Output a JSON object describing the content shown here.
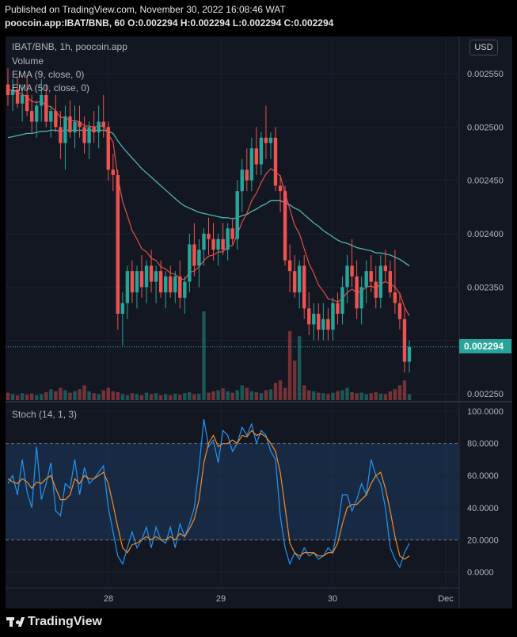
{
  "header": {
    "published": "Published on TradingView.com, November 30, 2022 16:08:46 WAT",
    "symbol_line": "poocoin.app:IBAT/BNB, 60",
    "ohlc": "O:0.002294 H:0.002294 L:0.002294 C:0.002294"
  },
  "legend": {
    "title": "IBAT/BNB, 1h, poocoin.app",
    "volume": "Volume",
    "ema9": "EMA (9, close, 0)",
    "ema50": "EMA (50, close, 0)",
    "stoch": "Stoch (14, 1, 3)"
  },
  "currency_button": "USD",
  "price_tag": "0.002294",
  "footer": {
    "brand": "TradingView"
  },
  "colors": {
    "background": "#131722",
    "up": "#26a69a",
    "down": "#ef5350",
    "ema9": "#f0534c",
    "ema50": "#4db6ac",
    "stoch_k": "#2196f3",
    "stoch_d": "#f28c28",
    "stoch_band": "#1e3a5f"
  },
  "chart_data": [
    {
      "type": "candlestick",
      "title": "IBAT/BNB, 1h, poocoin.app",
      "y_ticks": [
        "0.002550",
        "0.002500",
        "0.002450",
        "0.002400",
        "0.002350",
        "0.002250"
      ],
      "ylim": [
        0.00224,
        0.00257
      ],
      "x_ticks": [
        "28",
        "29",
        "30",
        "Dec"
      ],
      "last_price": 0.002294,
      "candles": [
        [
          0.00254,
          0.002555,
          0.00252,
          0.00253
        ],
        [
          0.00253,
          0.002545,
          0.002515,
          0.002535
        ],
        [
          0.002535,
          0.002548,
          0.002518,
          0.002522
        ],
        [
          0.002522,
          0.00254,
          0.002505,
          0.00253
        ],
        [
          0.00253,
          0.002548,
          0.00251,
          0.002515
        ],
        [
          0.002515,
          0.00253,
          0.002495,
          0.002505
        ],
        [
          0.002505,
          0.002525,
          0.00249,
          0.00252
        ],
        [
          0.00252,
          0.002545,
          0.002505,
          0.00253
        ],
        [
          0.00253,
          0.00254,
          0.0025,
          0.002505
        ],
        [
          0.002505,
          0.00252,
          0.00249,
          0.002515
        ],
        [
          0.002515,
          0.00253,
          0.002495,
          0.0025
        ],
        [
          0.0025,
          0.002515,
          0.00247,
          0.002485
        ],
        [
          0.002485,
          0.00252,
          0.00246,
          0.00251
        ],
        [
          0.00251,
          0.002525,
          0.00249,
          0.002495
        ],
        [
          0.002495,
          0.00252,
          0.00248,
          0.002505
        ],
        [
          0.002505,
          0.00252,
          0.00249,
          0.0025
        ],
        [
          0.0025,
          0.00251,
          0.002475,
          0.002485
        ],
        [
          0.002485,
          0.002505,
          0.00247,
          0.0025
        ],
        [
          0.0025,
          0.002515,
          0.002485,
          0.002495
        ],
        [
          0.002495,
          0.00252,
          0.00248,
          0.002505
        ],
        [
          0.002505,
          0.00253,
          0.00249,
          0.0025
        ],
        [
          0.0025,
          0.002505,
          0.00245,
          0.00246
        ],
        [
          0.00246,
          0.002475,
          0.00244,
          0.002455
        ],
        [
          0.002455,
          0.00246,
          0.00231,
          0.002325
        ],
        [
          0.002325,
          0.002345,
          0.002295,
          0.002335
        ],
        [
          0.002335,
          0.00237,
          0.00232,
          0.002365
        ],
        [
          0.002365,
          0.002375,
          0.002335,
          0.002345
        ],
        [
          0.002345,
          0.00237,
          0.00233,
          0.002365
        ],
        [
          0.002365,
          0.00238,
          0.00234,
          0.00235
        ],
        [
          0.00235,
          0.002375,
          0.002335,
          0.00237
        ],
        [
          0.00237,
          0.002385,
          0.002345,
          0.002355
        ],
        [
          0.002355,
          0.00237,
          0.002335,
          0.002365
        ],
        [
          0.002365,
          0.002375,
          0.00234,
          0.002345
        ],
        [
          0.002345,
          0.002365,
          0.00233,
          0.00236
        ],
        [
          0.00236,
          0.00237,
          0.00234,
          0.002345
        ],
        [
          0.002345,
          0.002365,
          0.002335,
          0.00236
        ],
        [
          0.00236,
          0.002375,
          0.00233,
          0.00234
        ],
        [
          0.00234,
          0.00236,
          0.002325,
          0.002355
        ],
        [
          0.002355,
          0.0024,
          0.002345,
          0.00239
        ],
        [
          0.00239,
          0.00241,
          0.00236,
          0.00237
        ],
        [
          0.00237,
          0.002395,
          0.00235,
          0.002385
        ],
        [
          0.002385,
          0.002405,
          0.00237,
          0.0024
        ],
        [
          0.0024,
          0.002415,
          0.00238,
          0.002395
        ],
        [
          0.002395,
          0.00241,
          0.002375,
          0.002385
        ],
        [
          0.002385,
          0.0024,
          0.00237,
          0.002395
        ],
        [
          0.002395,
          0.00241,
          0.00238,
          0.002385
        ],
        [
          0.002385,
          0.00241,
          0.002375,
          0.002405
        ],
        [
          0.002405,
          0.002415,
          0.00239,
          0.002395
        ],
        [
          0.002395,
          0.00245,
          0.002385,
          0.00244
        ],
        [
          0.00244,
          0.00247,
          0.00242,
          0.00246
        ],
        [
          0.00246,
          0.00248,
          0.00244,
          0.00245
        ],
        [
          0.00245,
          0.00249,
          0.00244,
          0.00248
        ],
        [
          0.00248,
          0.0025,
          0.002455,
          0.002465
        ],
        [
          0.002465,
          0.002495,
          0.002455,
          0.00249
        ],
        [
          0.00249,
          0.00252,
          0.00247,
          0.002485
        ],
        [
          0.002485,
          0.002495,
          0.00247,
          0.00249
        ],
        [
          0.00249,
          0.0025,
          0.00244,
          0.002445
        ],
        [
          0.002445,
          0.002455,
          0.00242,
          0.00244
        ],
        [
          0.00244,
          0.002445,
          0.00237,
          0.002375
        ],
        [
          0.002375,
          0.00239,
          0.002345,
          0.002365
        ],
        [
          0.002365,
          0.00238,
          0.00234,
          0.002345
        ],
        [
          0.002345,
          0.002375,
          0.00233,
          0.00237
        ],
        [
          0.00237,
          0.00238,
          0.00232,
          0.00233
        ],
        [
          0.00233,
          0.002345,
          0.002305,
          0.002315
        ],
        [
          0.002315,
          0.002335,
          0.0023,
          0.002325
        ],
        [
          0.002325,
          0.002335,
          0.0023,
          0.00231
        ],
        [
          0.00231,
          0.002335,
          0.0023,
          0.00232
        ],
        [
          0.00232,
          0.00233,
          0.0023,
          0.00231
        ],
        [
          0.00231,
          0.00234,
          0.0023,
          0.002335
        ],
        [
          0.002335,
          0.002345,
          0.002315,
          0.002325
        ],
        [
          0.002325,
          0.00236,
          0.002315,
          0.00235
        ],
        [
          0.00235,
          0.00238,
          0.002335,
          0.00237
        ],
        [
          0.00237,
          0.002395,
          0.00235,
          0.00236
        ],
        [
          0.00236,
          0.002375,
          0.00232,
          0.00233
        ],
        [
          0.00233,
          0.00236,
          0.002315,
          0.00235
        ],
        [
          0.00235,
          0.002375,
          0.002335,
          0.002365
        ],
        [
          0.002365,
          0.00238,
          0.002345,
          0.002355
        ],
        [
          0.002355,
          0.00237,
          0.00233,
          0.00234
        ],
        [
          0.00234,
          0.00238,
          0.00233,
          0.00237
        ],
        [
          0.00237,
          0.002385,
          0.002355,
          0.002365
        ],
        [
          0.002365,
          0.002375,
          0.00234,
          0.002345
        ],
        [
          0.002345,
          0.002385,
          0.002325,
          0.002335
        ],
        [
          0.002335,
          0.002345,
          0.00231,
          0.00232
        ],
        [
          0.00232,
          0.00233,
          0.00227,
          0.00228
        ],
        [
          0.00228,
          0.0023,
          0.00227,
          0.002294
        ]
      ],
      "ema9": [
        0.002535,
        0.002534,
        0.002532,
        0.002531,
        0.002528,
        0.002524,
        0.002523,
        0.002524,
        0.00252,
        0.002519,
        0.002515,
        0.002509,
        0.002509,
        0.002506,
        0.002506,
        0.002505,
        0.002501,
        0.002501,
        0.0025,
        0.002501,
        0.002501,
        0.002493,
        0.002486,
        0.002453,
        0.00243,
        0.002417,
        0.002403,
        0.002395,
        0.002386,
        0.002383,
        0.002377,
        0.002375,
        0.002369,
        0.002367,
        0.002363,
        0.002362,
        0.002358,
        0.002357,
        0.002364,
        0.002365,
        0.002369,
        0.002375,
        0.002379,
        0.00238,
        0.002383,
        0.002383,
        0.002388,
        0.002389,
        0.002399,
        0.002411,
        0.002419,
        0.002431,
        0.002438,
        0.002448,
        0.002456,
        0.002461,
        0.002458,
        0.002454,
        0.002438,
        0.002423,
        0.002408,
        0.0024,
        0.002386,
        0.002372,
        0.002363,
        0.002352,
        0.002346,
        0.002339,
        0.002338,
        0.002336,
        0.002339,
        0.002345,
        0.002348,
        0.002345,
        0.002346,
        0.00235,
        0.002351,
        0.002349,
        0.002353,
        0.002355,
        0.002353,
        0.00235,
        0.002344,
        0.002331,
        0.002323
      ],
      "ema50": [
        0.00249,
        0.002491,
        0.002492,
        0.002493,
        0.002494,
        0.002494,
        0.002495,
        0.002496,
        0.002496,
        0.002497,
        0.002497,
        0.002496,
        0.002497,
        0.002497,
        0.002497,
        0.002497,
        0.002497,
        0.002497,
        0.002497,
        0.002497,
        0.002497,
        0.002496,
        0.002494,
        0.002487,
        0.002481,
        0.002476,
        0.002471,
        0.002466,
        0.002461,
        0.002457,
        0.002453,
        0.002449,
        0.002445,
        0.002441,
        0.002437,
        0.002433,
        0.002429,
        0.002426,
        0.002424,
        0.002422,
        0.00242,
        0.002419,
        0.002418,
        0.002417,
        0.002416,
        0.002415,
        0.002415,
        0.002414,
        0.002415,
        0.002417,
        0.002418,
        0.002421,
        0.002423,
        0.002426,
        0.002428,
        0.002431,
        0.002431,
        0.002431,
        0.002429,
        0.002427,
        0.002424,
        0.002422,
        0.002418,
        0.002414,
        0.00241,
        0.002407,
        0.002403,
        0.0024,
        0.002397,
        0.002394,
        0.002392,
        0.002391,
        0.002389,
        0.002387,
        0.002386,
        0.002385,
        0.002384,
        0.002382,
        0.002382,
        0.002381,
        0.00238,
        0.002378,
        0.002376,
        0.002373,
        0.00237
      ],
      "volume": [
        0.15,
        0.12,
        0.1,
        0.14,
        0.11,
        0.13,
        0.1,
        0.12,
        0.16,
        0.22,
        0.18,
        0.25,
        0.2,
        0.15,
        0.18,
        0.22,
        0.3,
        0.18,
        0.14,
        0.12,
        0.2,
        0.25,
        0.18,
        0.16,
        0.12,
        0.1,
        0.14,
        0.12,
        0.1,
        0.15,
        0.12,
        0.14,
        0.1,
        0.12,
        0.1,
        0.13,
        0.11,
        0.14,
        0.16,
        0.12,
        0.13,
        1.8,
        0.15,
        0.18,
        0.2,
        0.24,
        0.18,
        0.15,
        0.2,
        0.3,
        0.25,
        0.18,
        0.16,
        0.14,
        0.2,
        0.22,
        0.35,
        0.4,
        0.25,
        1.4,
        0.8,
        1.3,
        0.3,
        0.2,
        0.18,
        0.15,
        0.14,
        0.12,
        0.15,
        0.18,
        0.2,
        0.25,
        0.16,
        0.14,
        0.15,
        0.12,
        0.14,
        0.16,
        0.13,
        0.12,
        0.18,
        0.22,
        0.3,
        0.4,
        0.12
      ]
    },
    {
      "type": "line",
      "title": "Stoch (14, 1, 3)",
      "y_ticks": [
        "100.0000",
        "80.0000",
        "60.0000",
        "40.0000",
        "20.0000",
        "0.0000"
      ],
      "ylim": [
        -7,
        102
      ],
      "band": [
        20,
        80
      ],
      "series": [
        {
          "name": "%K",
          "values": [
            55,
            60,
            48,
            70,
            50,
            40,
            78,
            45,
            55,
            68,
            38,
            35,
            55,
            52,
            70,
            48,
            65,
            55,
            58,
            62,
            66,
            40,
            25,
            10,
            5,
            15,
            25,
            15,
            20,
            28,
            15,
            28,
            20,
            18,
            28,
            15,
            30,
            22,
            30,
            40,
            65,
            95,
            78,
            82,
            68,
            88,
            85,
            75,
            80,
            90,
            85,
            92,
            80,
            88,
            85,
            75,
            70,
            35,
            15,
            5,
            12,
            8,
            15,
            10,
            12,
            8,
            10,
            15,
            12,
            28,
            48,
            48,
            38,
            45,
            55,
            48,
            70,
            60,
            55,
            40,
            15,
            8,
            3,
            12,
            18
          ]
        },
        {
          "name": "%D",
          "values": [
            58,
            56,
            55,
            58,
            56,
            52,
            56,
            55,
            58,
            60,
            52,
            45,
            45,
            48,
            58,
            55,
            60,
            58,
            58,
            60,
            62,
            55,
            42,
            28,
            15,
            12,
            17,
            18,
            20,
            22,
            20,
            22,
            20,
            20,
            22,
            20,
            24,
            22,
            27,
            33,
            45,
            68,
            80,
            85,
            78,
            80,
            80,
            82,
            80,
            85,
            84,
            88,
            85,
            86,
            84,
            80,
            75,
            62,
            40,
            18,
            12,
            10,
            12,
            12,
            12,
            10,
            10,
            12,
            12,
            18,
            30,
            40,
            42,
            42,
            45,
            48,
            55,
            60,
            62,
            52,
            38,
            22,
            10,
            8,
            10
          ]
        }
      ]
    }
  ]
}
